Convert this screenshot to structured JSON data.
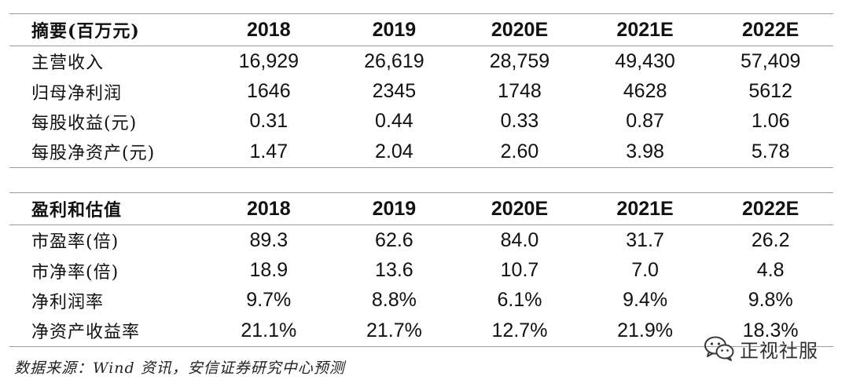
{
  "summary_table": {
    "header": [
      "摘要(百万元)",
      "2018",
      "2019",
      "2020E",
      "2021E",
      "2022E"
    ],
    "rows": [
      [
        "主营收入",
        "16,929",
        "26,619",
        "28,759",
        "49,430",
        "57,409"
      ],
      [
        "归母净利润",
        "1646",
        "2345",
        "1748",
        "4628",
        "5612"
      ],
      [
        "每股收益(元)",
        "0.31",
        "0.44",
        "0.33",
        "0.87",
        "1.06"
      ],
      [
        "每股净资产(元)",
        "1.47",
        "2.04",
        "2.60",
        "3.98",
        "5.78"
      ]
    ]
  },
  "valuation_table": {
    "header": [
      "盈利和估值",
      "2018",
      "2019",
      "2020E",
      "2021E",
      "2022E"
    ],
    "rows": [
      [
        "市盈率(倍)",
        "89.3",
        "62.6",
        "84.0",
        "31.7",
        "26.2"
      ],
      [
        "市净率(倍)",
        "18.9",
        "13.6",
        "10.7",
        "7.0",
        "4.8"
      ],
      [
        "净利润率",
        "9.7%",
        "8.8%",
        "6.1%",
        "9.4%",
        "9.8%"
      ],
      [
        "净资产收益率",
        "21.1%",
        "21.7%",
        "12.7%",
        "21.9%",
        "18.3%"
      ]
    ]
  },
  "source_note": "数据来源：Wind 资讯，安信证券研究中心预测",
  "watermark": {
    "icon": "wechat-icon",
    "text": "正视社服"
  }
}
